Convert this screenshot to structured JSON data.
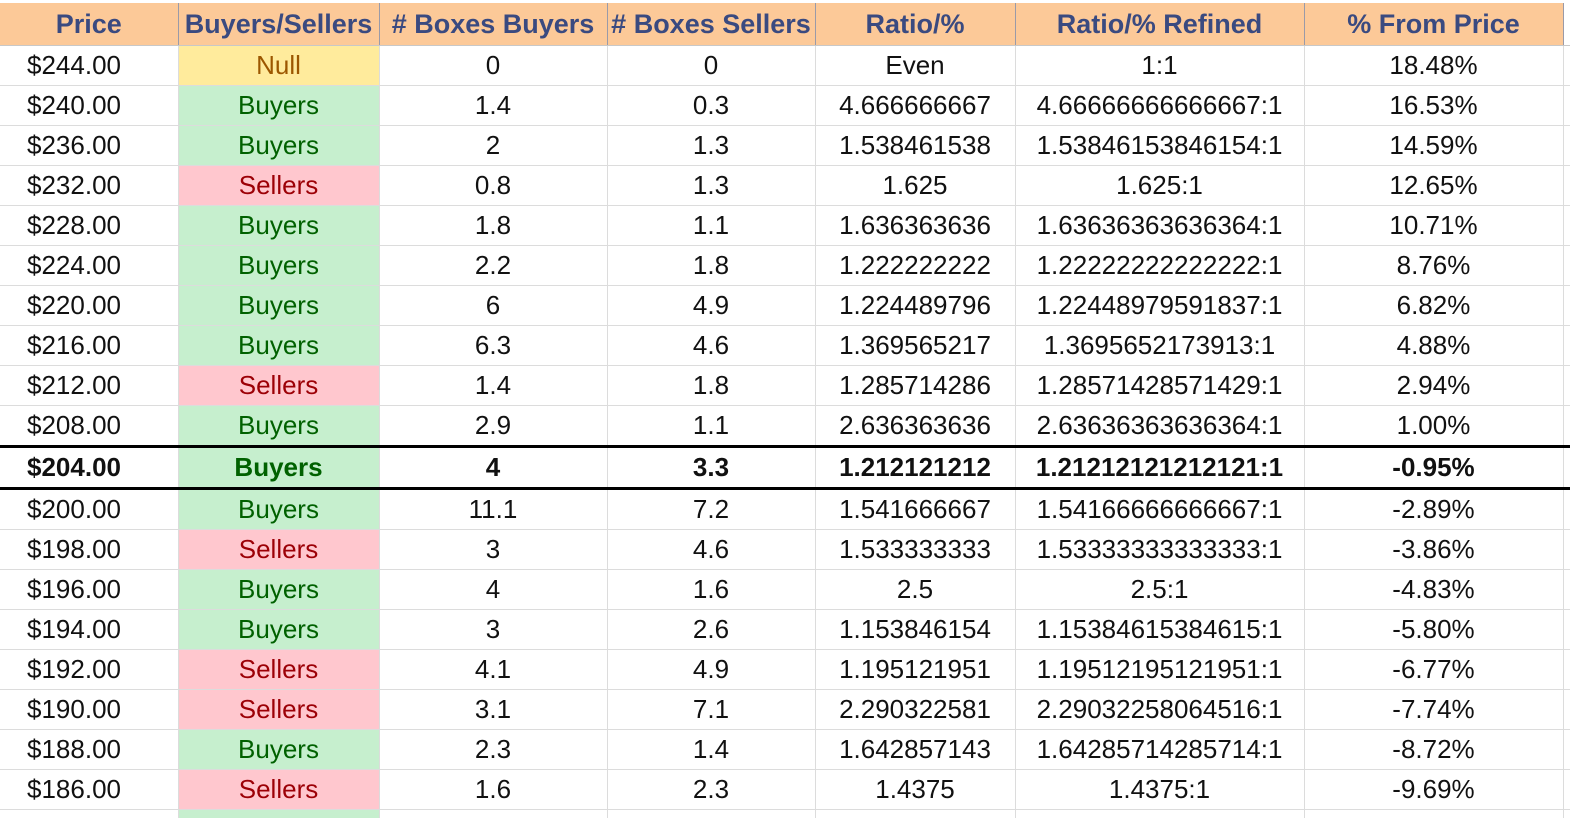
{
  "colors": {
    "header_bg": "#fcc998",
    "header_text": "#3a4a80",
    "buyers_bg": "#c6efce",
    "buyers_text": "#006100",
    "sellers_bg": "#ffc7ce",
    "sellers_text": "#9c0006",
    "null_bg": "#ffeb9c",
    "null_text": "#9c5700"
  },
  "headers": [
    "Price",
    "Buyers/Sellers",
    "# Boxes Buyers",
    "# Boxes Sellers",
    "Ratio/%",
    "Ratio/% Refined",
    "% From Price"
  ],
  "current_price_row_index": 10,
  "rows": [
    [
      "$244.00",
      "Null",
      "0",
      "0",
      "Even",
      "1:1",
      "18.48%"
    ],
    [
      "$240.00",
      "Buyers",
      "1.4",
      "0.3",
      "4.666666667",
      "4.66666666666667:1",
      "16.53%"
    ],
    [
      "$236.00",
      "Buyers",
      "2",
      "1.3",
      "1.538461538",
      "1.53846153846154:1",
      "14.59%"
    ],
    [
      "$232.00",
      "Sellers",
      "0.8",
      "1.3",
      "1.625",
      "1.625:1",
      "12.65%"
    ],
    [
      "$228.00",
      "Buyers",
      "1.8",
      "1.1",
      "1.636363636",
      "1.63636363636364:1",
      "10.71%"
    ],
    [
      "$224.00",
      "Buyers",
      "2.2",
      "1.8",
      "1.222222222",
      "1.22222222222222:1",
      "8.76%"
    ],
    [
      "$220.00",
      "Buyers",
      "6",
      "4.9",
      "1.224489796",
      "1.22448979591837:1",
      "6.82%"
    ],
    [
      "$216.00",
      "Buyers",
      "6.3",
      "4.6",
      "1.369565217",
      "1.3695652173913:1",
      "4.88%"
    ],
    [
      "$212.00",
      "Sellers",
      "1.4",
      "1.8",
      "1.285714286",
      "1.28571428571429:1",
      "2.94%"
    ],
    [
      "$208.00",
      "Buyers",
      "2.9",
      "1.1",
      "2.636363636",
      "2.63636363636364:1",
      "1.00%"
    ],
    [
      "$204.00",
      "Buyers",
      "4",
      "3.3",
      "1.212121212",
      "1.21212121212121:1",
      "-0.95%"
    ],
    [
      "$200.00",
      "Buyers",
      "11.1",
      "7.2",
      "1.541666667",
      "1.54166666666667:1",
      "-2.89%"
    ],
    [
      "$198.00",
      "Sellers",
      "3",
      "4.6",
      "1.533333333",
      "1.53333333333333:1",
      "-3.86%"
    ],
    [
      "$196.00",
      "Buyers",
      "4",
      "1.6",
      "2.5",
      "2.5:1",
      "-4.83%"
    ],
    [
      "$194.00",
      "Buyers",
      "3",
      "2.6",
      "1.153846154",
      "1.15384615384615:1",
      "-5.80%"
    ],
    [
      "$192.00",
      "Sellers",
      "4.1",
      "4.9",
      "1.195121951",
      "1.19512195121951:1",
      "-6.77%"
    ],
    [
      "$190.00",
      "Sellers",
      "3.1",
      "7.1",
      "2.290322581",
      "2.29032258064516:1",
      "-7.74%"
    ],
    [
      "$188.00",
      "Buyers",
      "2.3",
      "1.4",
      "1.642857143",
      "1.64285714285714:1",
      "-8.72%"
    ],
    [
      "$186.00",
      "Sellers",
      "1.6",
      "2.3",
      "1.4375",
      "1.4375:1",
      "-9.69%"
    ]
  ],
  "partial_row_side": "Buyers"
}
